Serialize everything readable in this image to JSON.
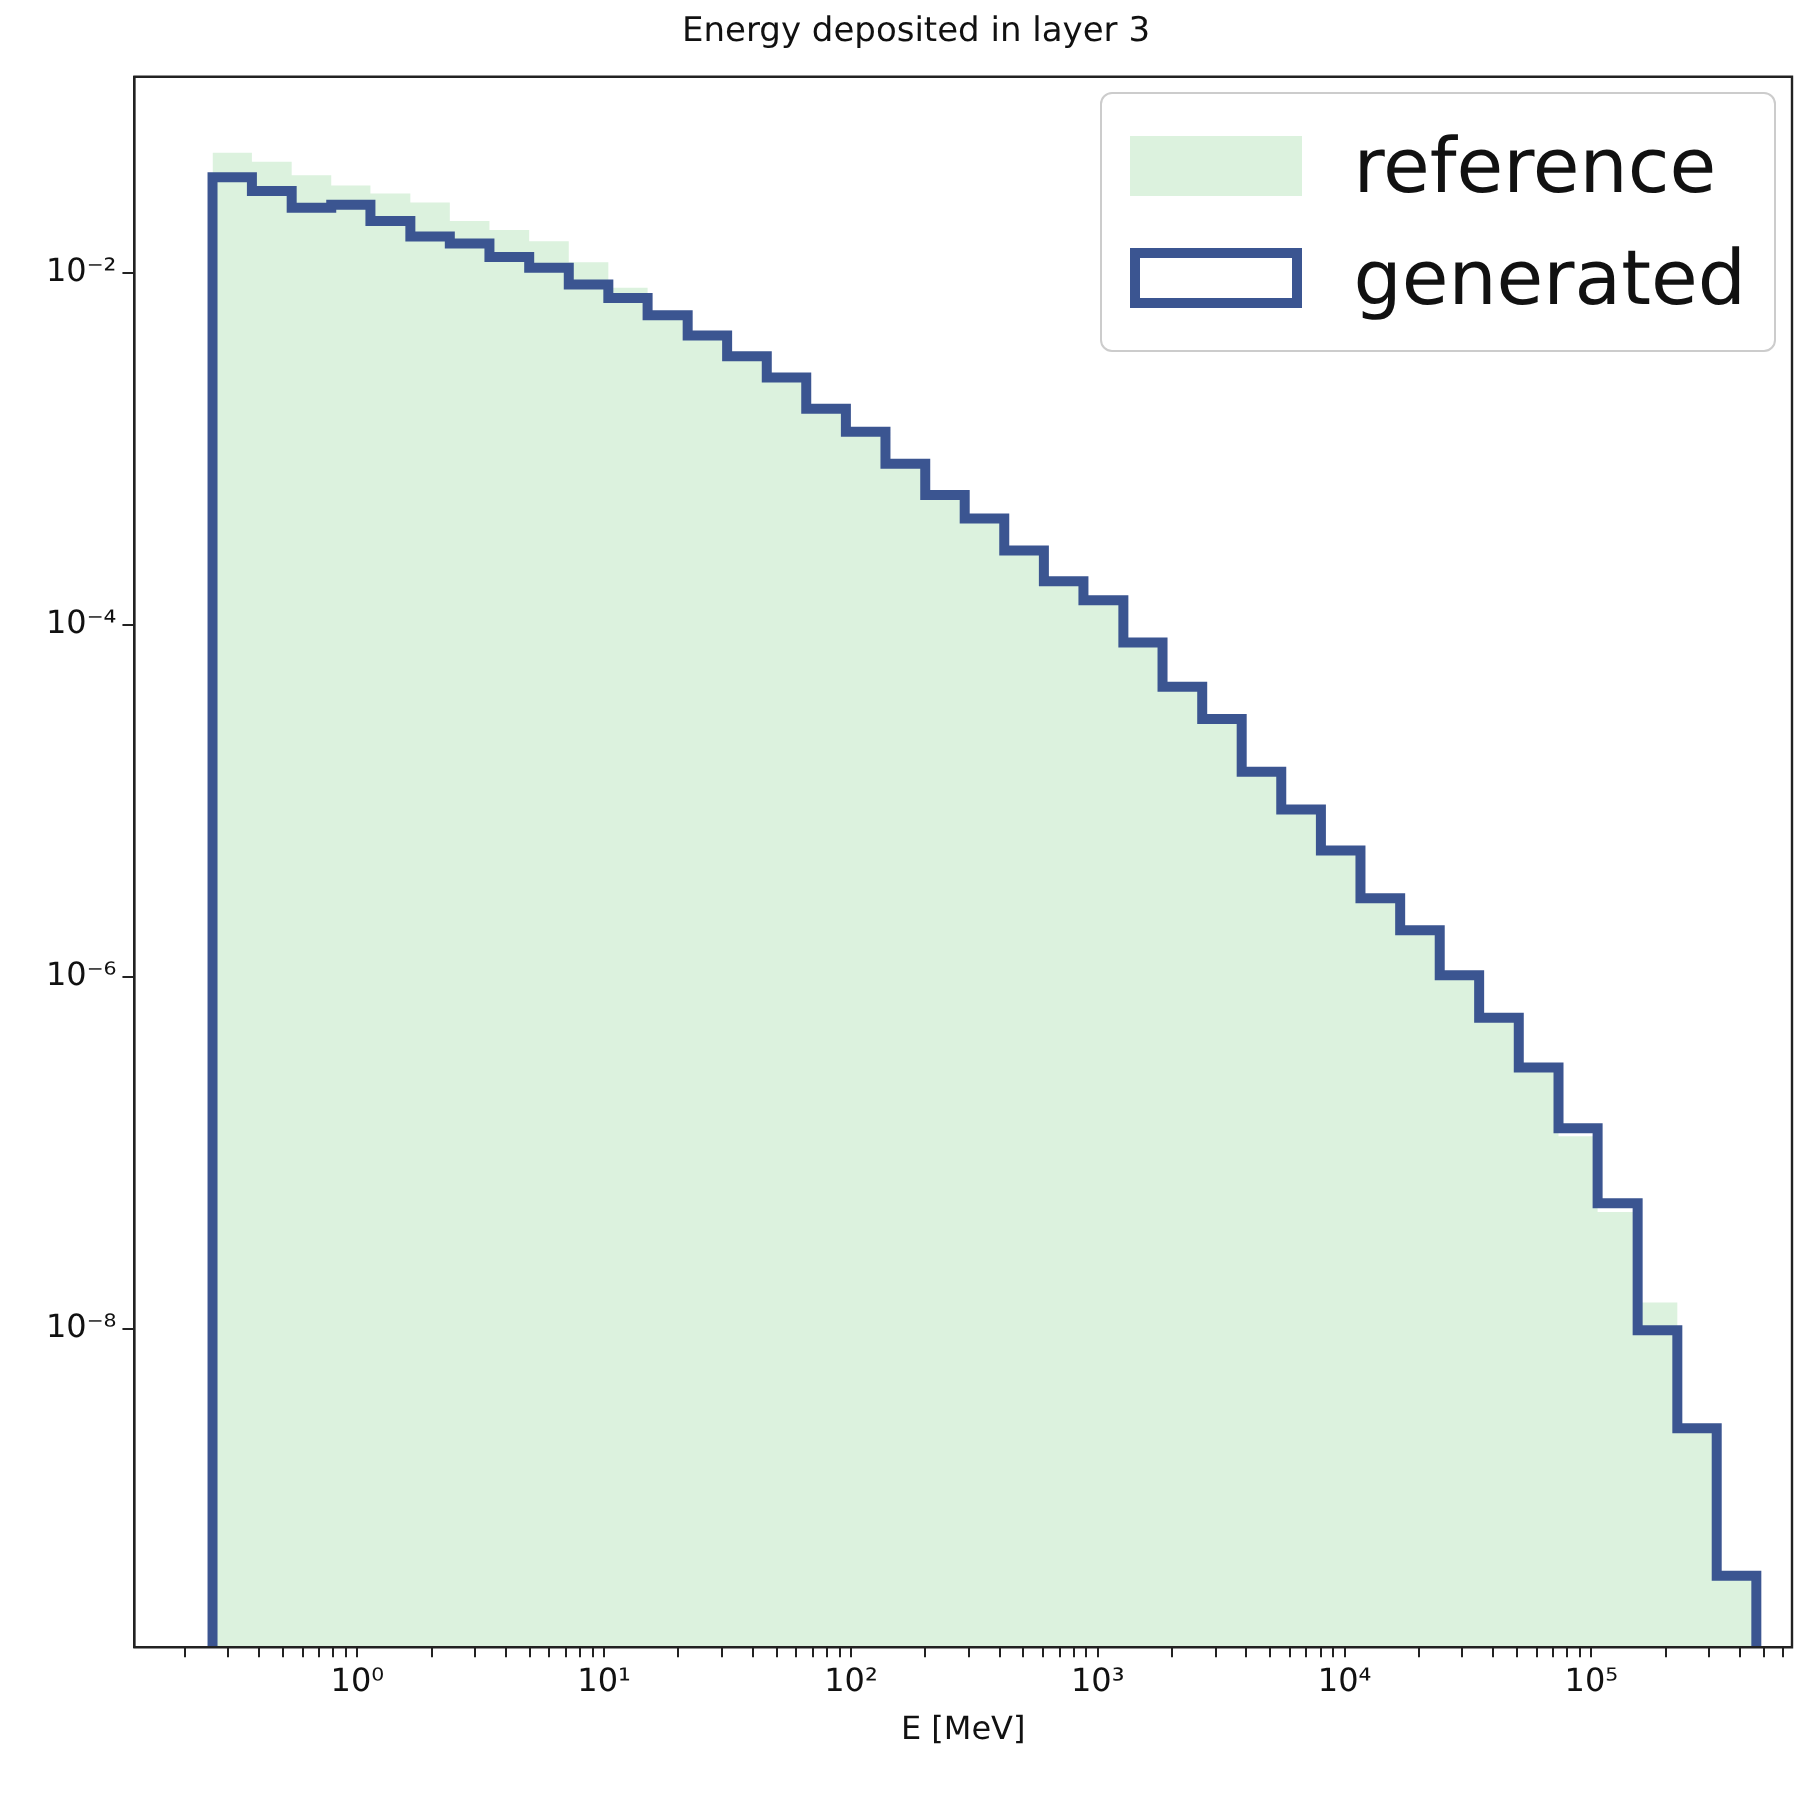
{
  "chart_data": {
    "type": "histogram",
    "title": "Energy deposited in layer 3",
    "xlabel": "E [MeV]",
    "log": "xy",
    "grid": false,
    "legend": "top right",
    "bins": [
      0.259,
      0.374,
      0.542,
      0.784,
      1.13,
      1.64,
      2.37,
      3.43,
      4.97,
      7.19,
      10.4,
      15.0,
      21.8,
      31.5,
      45.6,
      65.9,
      95.4,
      138,
      200,
      289,
      418,
      605,
      875,
      1270,
      1830,
      2650,
      3830,
      5540,
      8020,
      11600,
      16800,
      24300,
      35100,
      50800,
      73600,
      106000,
      154000,
      223000,
      322000,
      466000
    ],
    "xlim": [
      0.125,
      650000
    ],
    "ylim": [
      1.55e-10,
      0.13
    ],
    "xticks": [
      {
        "value": 0.2,
        "label": null
      },
      {
        "value": 0.3,
        "label": null
      },
      {
        "value": 0.4,
        "label": null
      },
      {
        "value": 0.5,
        "label": null
      },
      {
        "value": 0.6,
        "label": null
      },
      {
        "value": 0.7,
        "label": null
      },
      {
        "value": 0.8,
        "label": null
      },
      {
        "value": 0.9,
        "label": null
      },
      {
        "value": 1,
        "label": "10⁰"
      },
      {
        "value": 2,
        "label": null
      },
      {
        "value": 3,
        "label": null
      },
      {
        "value": 4,
        "label": null
      },
      {
        "value": 5,
        "label": null
      },
      {
        "value": 6,
        "label": null
      },
      {
        "value": 7,
        "label": null
      },
      {
        "value": 8,
        "label": null
      },
      {
        "value": 9,
        "label": null
      },
      {
        "value": 10,
        "label": "10¹"
      },
      {
        "value": 20,
        "label": null
      },
      {
        "value": 30,
        "label": null
      },
      {
        "value": 40,
        "label": null
      },
      {
        "value": 50,
        "label": null
      },
      {
        "value": 60,
        "label": null
      },
      {
        "value": 70,
        "label": null
      },
      {
        "value": 80,
        "label": null
      },
      {
        "value": 90,
        "label": null
      },
      {
        "value": 100,
        "label": "10²"
      },
      {
        "value": 200,
        "label": null
      },
      {
        "value": 300,
        "label": null
      },
      {
        "value": 400,
        "label": null
      },
      {
        "value": 500,
        "label": null
      },
      {
        "value": 600,
        "label": null
      },
      {
        "value": 700,
        "label": null
      },
      {
        "value": 800,
        "label": null
      },
      {
        "value": 900,
        "label": null
      },
      {
        "value": 1000,
        "label": "10³"
      },
      {
        "value": 2000,
        "label": null
      },
      {
        "value": 3000,
        "label": null
      },
      {
        "value": 4000,
        "label": null
      },
      {
        "value": 5000,
        "label": null
      },
      {
        "value": 6000,
        "label": null
      },
      {
        "value": 7000,
        "label": null
      },
      {
        "value": 8000,
        "label": null
      },
      {
        "value": 9000,
        "label": null
      },
      {
        "value": 10000,
        "label": "10⁴"
      },
      {
        "value": 20000,
        "label": null
      },
      {
        "value": 30000,
        "label": null
      },
      {
        "value": 40000,
        "label": null
      },
      {
        "value": 50000,
        "label": null
      },
      {
        "value": 60000,
        "label": null
      },
      {
        "value": 70000,
        "label": null
      },
      {
        "value": 80000,
        "label": null
      },
      {
        "value": 90000,
        "label": null
      },
      {
        "value": 100000,
        "label": "10⁵"
      },
      {
        "value": 200000,
        "label": null
      },
      {
        "value": 300000,
        "label": null
      },
      {
        "value": 400000,
        "label": null
      },
      {
        "value": 500000,
        "label": null
      },
      {
        "value": 600000,
        "label": null
      }
    ],
    "yticks": [
      {
        "value": 0.01,
        "label": "10⁻²"
      },
      {
        "value": 0.0001,
        "label": "10⁻⁴"
      },
      {
        "value": 1e-06,
        "label": "10⁻⁶"
      },
      {
        "value": 1e-08,
        "label": "10⁻⁸"
      }
    ],
    "series": [
      {
        "name": "reference",
        "color": "#dcf2de",
        "values": [
          0.0482,
          0.0428,
          0.0359,
          0.0314,
          0.0282,
          0.0251,
          0.0197,
          0.0175,
          0.0151,
          0.0115,
          0.00823,
          0.00574,
          0.0044,
          0.00336,
          0.00254,
          0.00169,
          0.00125,
          0.000822,
          0.000547,
          0.000402,
          0.000264,
          0.000177,
          0.000138,
          7.93e-05,
          4.45e-05,
          2.92e-05,
          1.46e-05,
          8.91e-06,
          5.22e-06,
          2.79e-06,
          1.84e-06,
          1.02e-06,
          5.85e-07,
          3.05e-07,
          1.24e-07,
          4.6e-08,
          1.41e-08,
          2.72e-09,
          3.95e-10
        ]
      },
      {
        "name": "generated",
        "type": "step",
        "line_style": "solid",
        "color": "#3b5591",
        "x": [
          0.259,
          0.374,
          0.542,
          0.784,
          1.13,
          1.64,
          2.37,
          3.43,
          4.97,
          7.19,
          10.4,
          15.0,
          21.8,
          31.5,
          45.6,
          65.9,
          95.4,
          138,
          200,
          289,
          418,
          605,
          875,
          1270,
          1830,
          2650,
          3830,
          5540,
          8020,
          11600,
          16800,
          24300,
          35100,
          50800,
          73600,
          106000,
          154000,
          223000,
          322000,
          466000
        ],
        "values": [
          0.0349,
          0.0292,
          0.0234,
          0.0244,
          0.0197,
          0.0161,
          0.0147,
          0.0123,
          0.0107,
          0.00859,
          0.0072,
          0.00574,
          0.0044,
          0.00336,
          0.00254,
          0.00169,
          0.00125,
          0.000822,
          0.000547,
          0.000402,
          0.000264,
          0.000177,
          0.000138,
          7.93e-05,
          4.45e-05,
          2.92e-05,
          1.46e-05,
          8.91e-06,
          5.22e-06,
          2.79e-06,
          1.84e-06,
          1.02e-06,
          5.85e-07,
          3.05e-07,
          1.38e-07,
          5.17e-08,
          9.8e-09,
          2.72e-09,
          3.95e-10,
          3.95e-10
        ]
      }
    ]
  }
}
